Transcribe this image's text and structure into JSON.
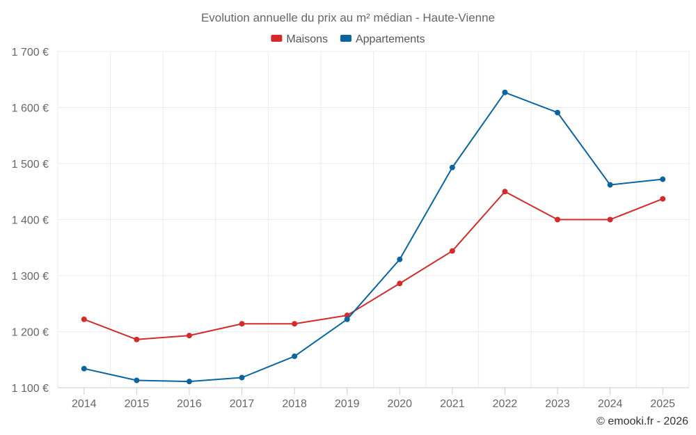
{
  "chart_data": {
    "type": "line",
    "title": "Evolution annuelle du prix au m² médian - Haute-Vienne",
    "categories": [
      "2014",
      "2015",
      "2016",
      "2017",
      "2018",
      "2019",
      "2020",
      "2021",
      "2022",
      "2023",
      "2024",
      "2025"
    ],
    "ylim": [
      1100,
      1700
    ],
    "yticks": [
      1100,
      1200,
      1300,
      1400,
      1500,
      1600,
      1700
    ],
    "ytick_labels": [
      "1 100 €",
      "1 200 €",
      "1 300 €",
      "1 400 €",
      "1 500 €",
      "1 600 €",
      "1 700 €"
    ],
    "xlabel": "",
    "ylabel": "",
    "grid": true,
    "legend_position": "top-center",
    "series": [
      {
        "name": "Maisons",
        "color": "#d42a2a",
        "values": [
          1222,
          1186,
          1193,
          1214,
          1214,
          1229,
          1286,
          1344,
          1450,
          1400,
          1400,
          1437
        ]
      },
      {
        "name": "Appartements",
        "color": "#0a64a0",
        "values": [
          1134,
          1113,
          1111,
          1118,
          1156,
          1222,
          1329,
          1493,
          1627,
          1591,
          1462,
          1472
        ]
      }
    ]
  },
  "credit": "© emooki.fr - 2026"
}
